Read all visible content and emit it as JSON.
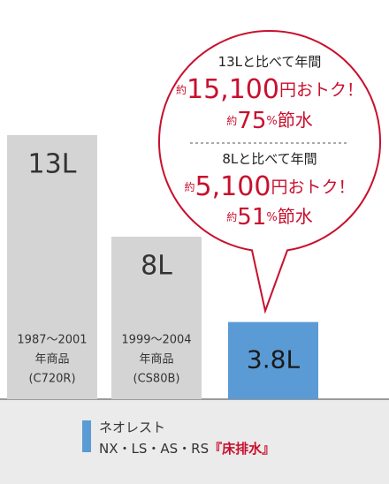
{
  "chart_data": {
    "type": "bar",
    "categories": [
      [
        "1987〜2001",
        "年商品",
        "(C720R)"
      ],
      [
        "1999〜2004",
        "年商品",
        "(CS80B)"
      ],
      null
    ],
    "values": [
      13,
      8,
      3.8
    ],
    "value_labels": [
      "13L",
      "8L",
      "3.8L"
    ],
    "colors": [
      "#d4d4d4",
      "#d4d4d4",
      "#5b9bd5"
    ],
    "legend": {
      "color": "#5b9bd5",
      "lines": [
        [
          {
            "text": "ネオレスト",
            "color": "#333333"
          }
        ],
        [
          {
            "text": "NX・LS・AS・RS",
            "color": "#333333"
          },
          {
            "text": "『床排水』",
            "color": "#c8102e"
          }
        ]
      ]
    },
    "callout": {
      "color": "#c8102e",
      "blocks": [
        [
          [
            {
              "text": "13Lと比べて年間",
              "size": 15,
              "color": "#222222"
            }
          ],
          [
            {
              "text": "約",
              "size": 12,
              "color": "#c8102e"
            },
            {
              "text": "15,100",
              "size": 30,
              "color": "#c8102e"
            },
            {
              "text": "円おトク！",
              "size": 19,
              "color": "#c8102e"
            }
          ],
          [
            {
              "text": "約",
              "size": 12,
              "color": "#c8102e"
            },
            {
              "text": "75",
              "size": 26,
              "color": "#c8102e"
            },
            {
              "text": "%",
              "size": 13,
              "color": "#c8102e"
            },
            {
              "text": "節水",
              "size": 20,
              "color": "#c8102e"
            }
          ]
        ],
        [
          [
            {
              "text": "8Lと比べて年間",
              "size": 15,
              "color": "#222222"
            }
          ],
          [
            {
              "text": "約",
              "size": 12,
              "color": "#c8102e"
            },
            {
              "text": "5,100",
              "size": 30,
              "color": "#c8102e"
            },
            {
              "text": "円おトク！",
              "size": 19,
              "color": "#c8102e"
            }
          ],
          [
            {
              "text": "約",
              "size": 12,
              "color": "#c8102e"
            },
            {
              "text": "51",
              "size": 26,
              "color": "#c8102e"
            },
            {
              "text": "%",
              "size": 13,
              "color": "#c8102e"
            },
            {
              "text": "節水",
              "size": 20,
              "color": "#c8102e"
            }
          ]
        ]
      ]
    }
  }
}
